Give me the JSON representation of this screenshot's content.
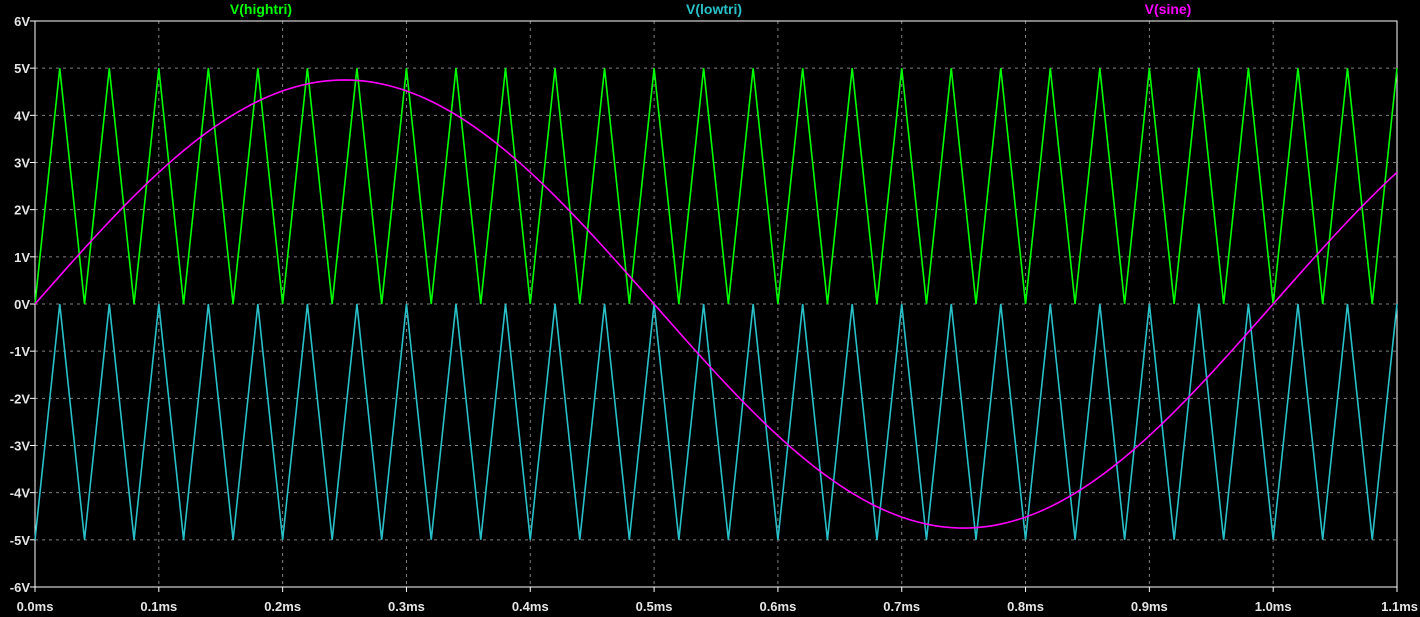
{
  "colors": {
    "background": "#000000",
    "axis": "#ffffff",
    "grid": "#808080",
    "tick_label": "#e6e6e6",
    "hightri": "#00ff00",
    "lowtri": "#29c0c8",
    "sine": "#ff00ff"
  },
  "chart_data": {
    "type": "line",
    "xlabel": "",
    "ylabel": "",
    "xlim": [
      0,
      1.1
    ],
    "ylim": [
      -6,
      6
    ],
    "grid": true,
    "legend": "top",
    "x_unit": "ms",
    "y_unit": "V",
    "x_ticks": [
      0.0,
      0.1,
      0.2,
      0.3,
      0.4,
      0.5,
      0.6,
      0.7,
      0.8,
      0.9,
      1.0,
      1.1
    ],
    "x_tick_labels": [
      "0.0ms",
      "0.1ms",
      "0.2ms",
      "0.3ms",
      "0.4ms",
      "0.5ms",
      "0.6ms",
      "0.7ms",
      "0.8ms",
      "0.9ms",
      "1.0ms",
      "1.1ms"
    ],
    "y_ticks": [
      6,
      5,
      4,
      3,
      2,
      1,
      0,
      -1,
      -2,
      -3,
      -4,
      -5,
      -6
    ],
    "y_tick_labels": [
      "6V",
      "5V",
      "4V",
      "3V",
      "2V",
      "1V",
      "0V",
      "-1V",
      "-2V",
      "-3V",
      "-4V",
      "-5V",
      "-6V"
    ],
    "series": [
      {
        "name": "V(hightri)",
        "color_key": "hightri",
        "x": [
          0,
          0.02,
          0.04,
          0.06,
          0.08,
          0.1,
          0.12,
          0.14,
          0.16,
          0.18,
          0.2,
          0.22,
          0.24,
          0.26,
          0.28,
          0.3,
          0.32,
          0.34,
          0.36,
          0.38,
          0.4,
          0.42,
          0.44,
          0.46,
          0.48,
          0.5,
          0.52,
          0.54,
          0.56,
          0.58,
          0.6,
          0.62,
          0.64,
          0.66,
          0.68,
          0.7,
          0.72,
          0.74,
          0.76,
          0.78,
          0.8,
          0.82,
          0.84,
          0.86,
          0.88,
          0.9,
          0.92,
          0.94,
          0.96,
          0.98,
          1.0,
          1.02,
          1.04,
          1.06,
          1.08,
          1.1
        ],
        "values": [
          0,
          5,
          0,
          5,
          0,
          5,
          0,
          5,
          0,
          5,
          0,
          5,
          0,
          5,
          0,
          5,
          0,
          5,
          0,
          5,
          0,
          5,
          0,
          5,
          0,
          5,
          0,
          5,
          0,
          5,
          0,
          5,
          0,
          5,
          0,
          5,
          0,
          5,
          0,
          5,
          0,
          5,
          0,
          5,
          0,
          5,
          0,
          5,
          0,
          5,
          0,
          5,
          0,
          5,
          0,
          5
        ]
      },
      {
        "name": "V(lowtri)",
        "color_key": "lowtri",
        "x": [
          0,
          0.02,
          0.04,
          0.06,
          0.08,
          0.1,
          0.12,
          0.14,
          0.16,
          0.18,
          0.2,
          0.22,
          0.24,
          0.26,
          0.28,
          0.3,
          0.32,
          0.34,
          0.36,
          0.38,
          0.4,
          0.42,
          0.44,
          0.46,
          0.48,
          0.5,
          0.52,
          0.54,
          0.56,
          0.58,
          0.6,
          0.62,
          0.64,
          0.66,
          0.68,
          0.7,
          0.72,
          0.74,
          0.76,
          0.78,
          0.8,
          0.82,
          0.84,
          0.86,
          0.88,
          0.9,
          0.92,
          0.94,
          0.96,
          0.98,
          1.0,
          1.02,
          1.04,
          1.06,
          1.08,
          1.1
        ],
        "values": [
          -5,
          0,
          -5,
          0,
          -5,
          0,
          -5,
          0,
          -5,
          0,
          -5,
          0,
          -5,
          0,
          -5,
          0,
          -5,
          0,
          -5,
          0,
          -5,
          0,
          -5,
          0,
          -5,
          0,
          -5,
          0,
          -5,
          0,
          -5,
          0,
          -5,
          0,
          -5,
          0,
          -5,
          0,
          -5,
          0,
          -5,
          0,
          -5,
          0,
          -5,
          0,
          -5,
          0,
          -5,
          0,
          -5,
          0,
          -5,
          0,
          -5,
          0
        ]
      },
      {
        "name": "V(sine)",
        "color_key": "sine",
        "x": [
          0,
          0.05,
          0.1,
          0.15,
          0.2,
          0.25,
          0.3,
          0.35,
          0.4,
          0.45,
          0.5,
          0.55,
          0.6,
          0.65,
          0.7,
          0.75,
          0.8,
          0.85,
          0.9,
          0.95,
          1.0,
          1.05,
          1.1
        ],
        "values": [
          0,
          1.47,
          2.79,
          3.84,
          4.52,
          4.75,
          4.52,
          3.84,
          2.79,
          1.47,
          0,
          -1.47,
          -2.79,
          -3.84,
          -4.52,
          -4.75,
          -4.52,
          -3.84,
          -2.79,
          -1.47,
          0,
          1.47,
          2.79
        ]
      }
    ]
  }
}
